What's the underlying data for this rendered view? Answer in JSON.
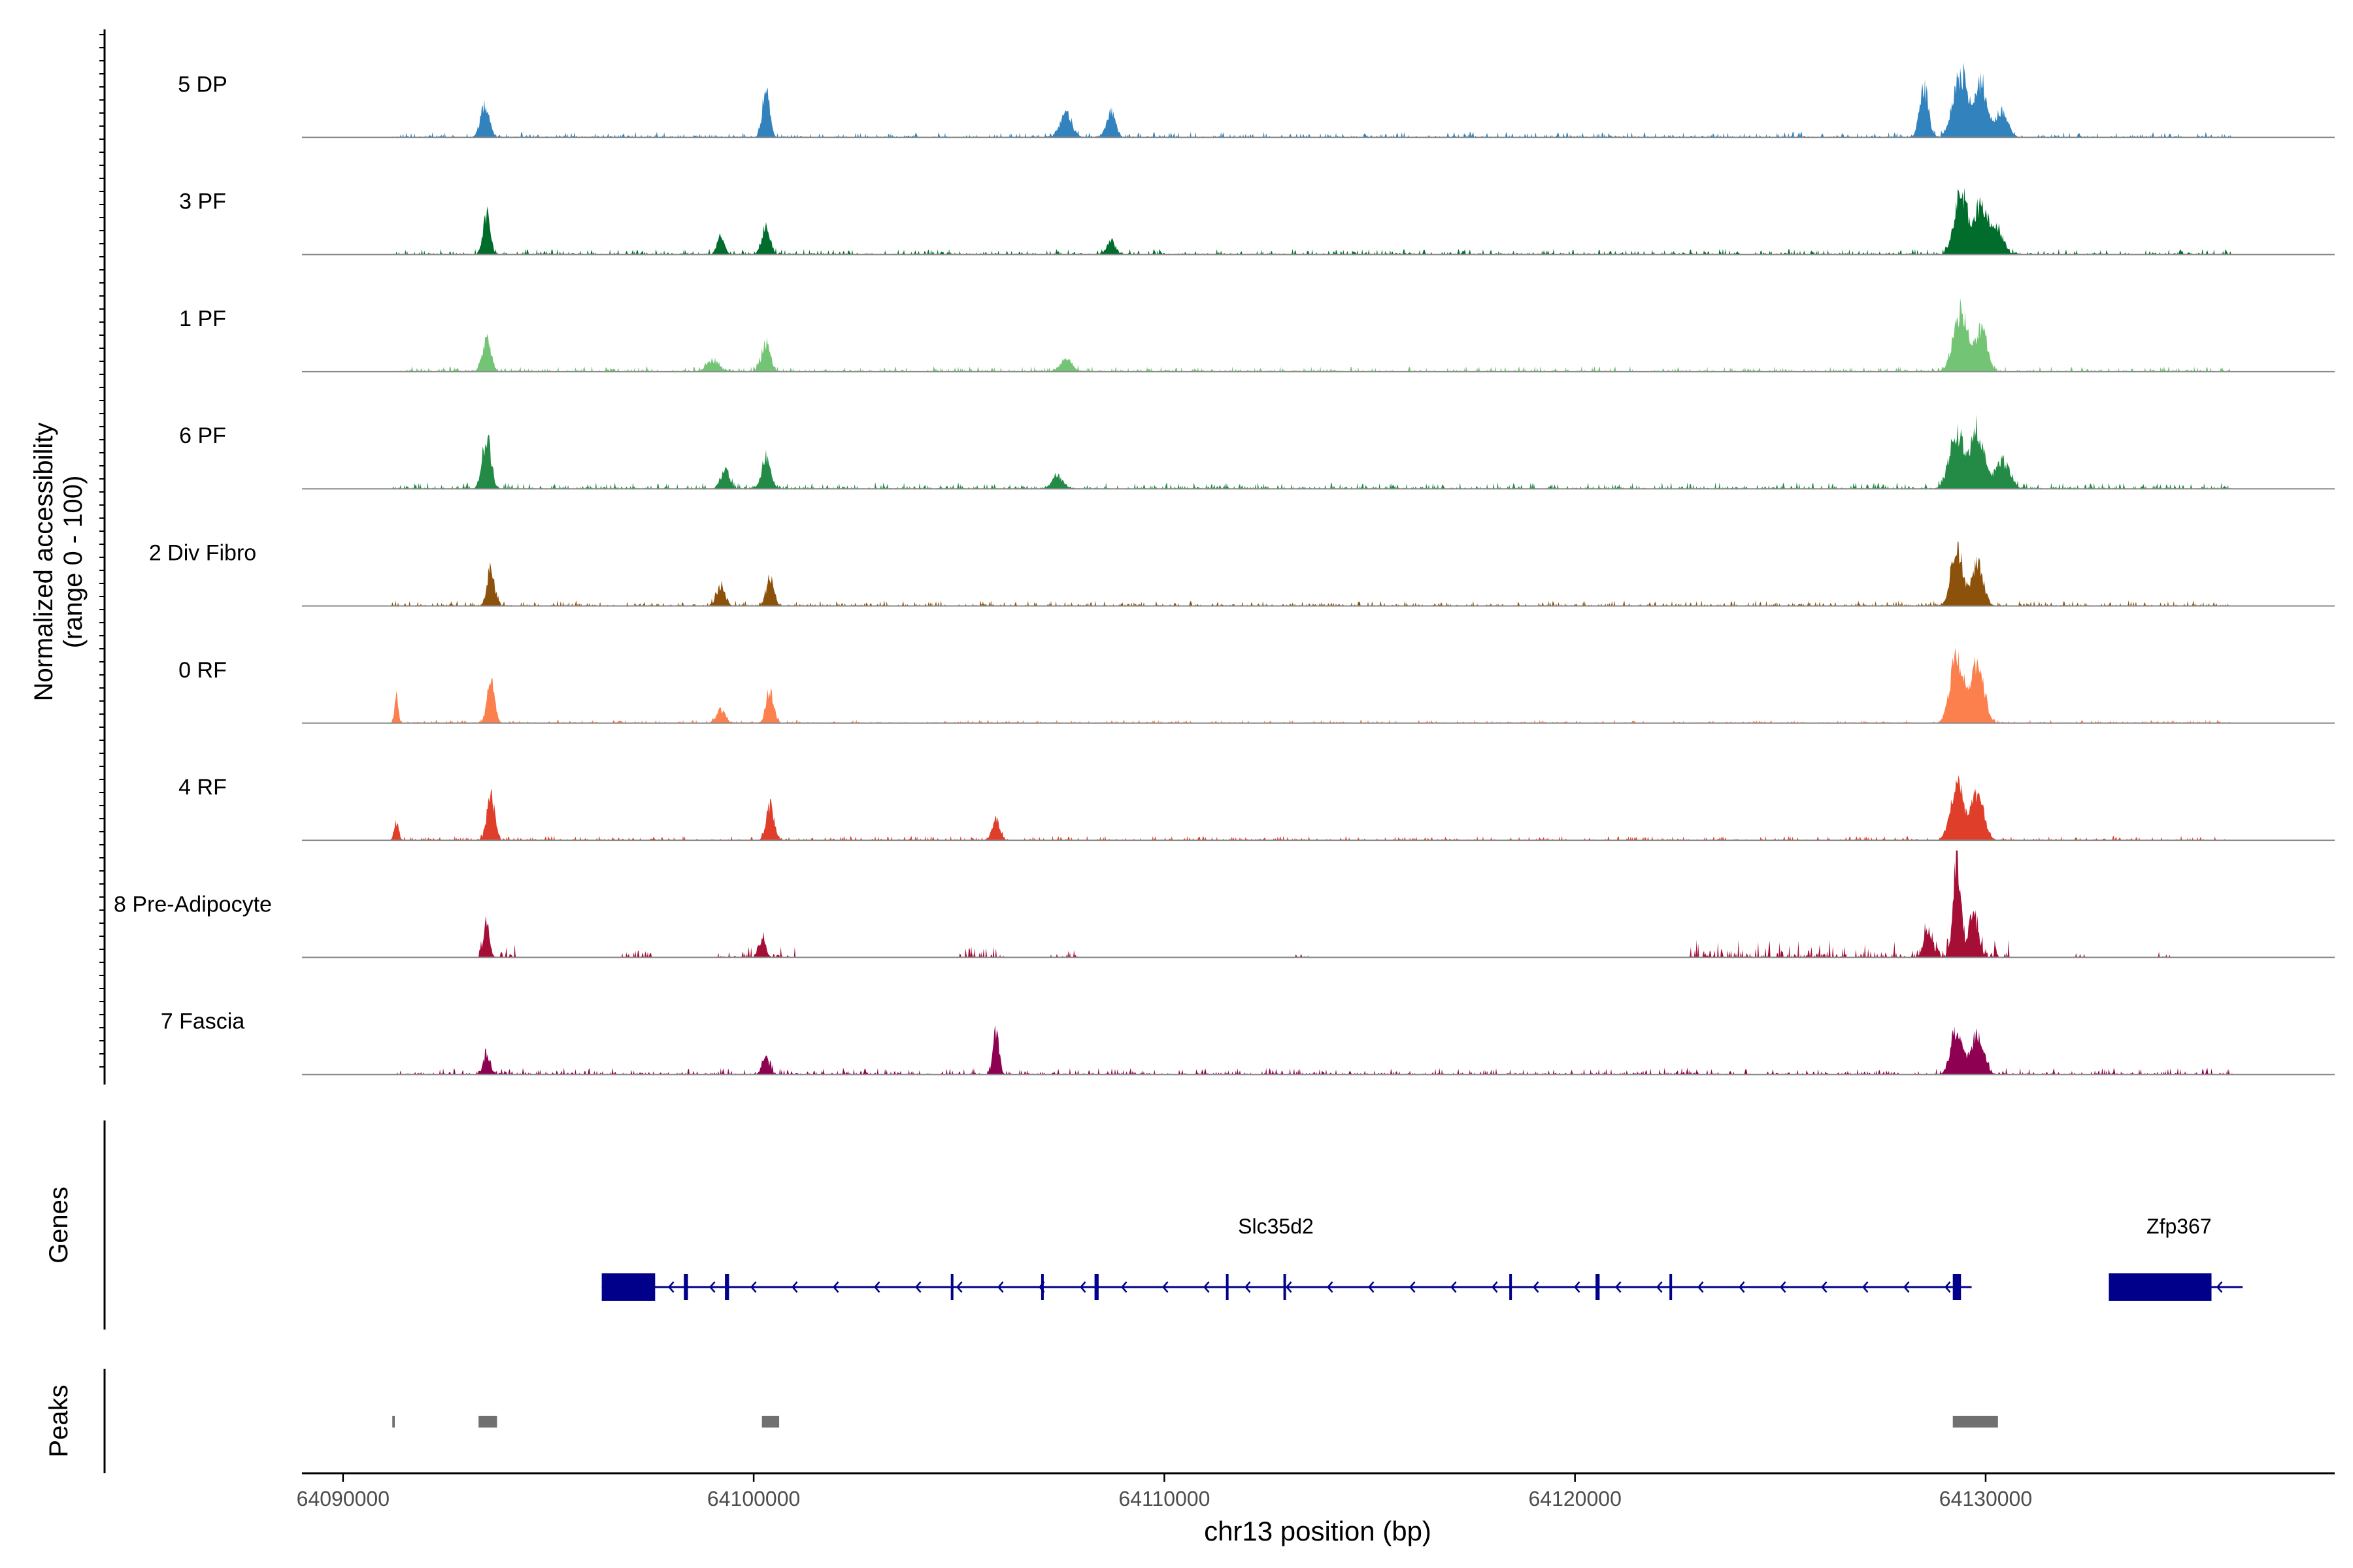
{
  "chart_data": {
    "type": "area",
    "title": "",
    "xlabel": "chr13 position (bp)",
    "ylabel_line1": "Normalized accessibility",
    "ylabel_line2": "(range 0 - 100)",
    "xlim": [
      64089000,
      64138500
    ],
    "x_ticks": [
      64090000,
      64100000,
      64110000,
      64120000,
      64130000
    ],
    "x_tick_labels": [
      "64090000",
      "64100000",
      "64110000",
      "64120000",
      "64130000"
    ],
    "track_labels": {
      "genes": "Genes",
      "peaks": "Peaks"
    },
    "coverage_range": [
      0,
      30
    ],
    "tracks": [
      {
        "name": "5 DP",
        "color": "#3182bd",
        "peaks": [
          [
            64093450,
            14,
            150
          ],
          [
            64100300,
            22,
            120
          ],
          [
            64107600,
            10,
            200
          ],
          [
            64108700,
            11,
            150
          ],
          [
            64128500,
            22,
            150
          ],
          [
            64129400,
            28,
            250
          ],
          [
            64129900,
            24,
            200
          ],
          [
            64130400,
            12,
            200
          ]
        ],
        "noise": [
          [
            64091200,
            64136000,
            2.5,
            1
          ]
        ]
      },
      {
        "name": "3 PF",
        "color": "#006d2c",
        "peaks": [
          [
            64093500,
            18,
            120
          ],
          [
            64099200,
            8,
            120
          ],
          [
            64100300,
            12,
            140
          ],
          [
            64108700,
            6,
            150
          ],
          [
            64129400,
            27,
            220
          ],
          [
            64129900,
            22,
            220
          ],
          [
            64130300,
            10,
            200
          ]
        ],
        "noise": [
          [
            64091200,
            64136000,
            2.5,
            2
          ]
        ]
      },
      {
        "name": "1 PF",
        "color": "#74c476",
        "peaks": [
          [
            64093500,
            14,
            150
          ],
          [
            64099000,
            5,
            200
          ],
          [
            64100300,
            13,
            150
          ],
          [
            64107600,
            5,
            220
          ],
          [
            64129400,
            26,
            250
          ],
          [
            64129900,
            18,
            200
          ]
        ],
        "noise": [
          [
            64091200,
            64136000,
            2.5,
            3
          ]
        ]
      },
      {
        "name": "6 PF",
        "color": "#238b45",
        "peaks": [
          [
            64093500,
            22,
            150
          ],
          [
            64099300,
            8,
            150
          ],
          [
            64100300,
            14,
            150
          ],
          [
            64107400,
            5,
            200
          ],
          [
            64129300,
            25,
            250
          ],
          [
            64129800,
            26,
            220
          ],
          [
            64130400,
            12,
            250
          ]
        ],
        "noise": [
          [
            64091200,
            64136000,
            3,
            4
          ]
        ]
      },
      {
        "name": "2 Div Fibro",
        "color": "#8c510a",
        "peaks": [
          [
            64093600,
            16,
            130
          ],
          [
            64099200,
            8,
            150
          ],
          [
            64100400,
            12,
            130
          ],
          [
            64129300,
            26,
            200
          ],
          [
            64129800,
            19,
            200
          ]
        ],
        "noise": [
          [
            64091200,
            64136000,
            2.5,
            5
          ]
        ]
      },
      {
        "name": "0 RF",
        "color": "#fc7f4e",
        "peaks": [
          [
            64091300,
            12,
            60
          ],
          [
            64093600,
            18,
            130
          ],
          [
            64099200,
            6,
            150
          ],
          [
            64100400,
            14,
            130
          ],
          [
            64129300,
            30,
            220
          ],
          [
            64129800,
            27,
            220
          ]
        ],
        "noise": [
          [
            64091200,
            64136000,
            1.5,
            6
          ]
        ]
      },
      {
        "name": "4 RF",
        "color": "#de3e2a",
        "peaks": [
          [
            64091300,
            8,
            80
          ],
          [
            64093600,
            20,
            130
          ],
          [
            64100400,
            16,
            130
          ],
          [
            64105900,
            9,
            130
          ],
          [
            64129300,
            25,
            220
          ],
          [
            64129800,
            20,
            220
          ]
        ],
        "noise": [
          [
            64091200,
            64136000,
            2,
            7
          ]
        ]
      },
      {
        "name": "8 Pre-Adipocyte",
        "color": "#a50f36",
        "peaks": [
          [
            64093500,
            15,
            100
          ],
          [
            64100200,
            8,
            120
          ],
          [
            64129300,
            45,
            130
          ],
          [
            64129700,
            20,
            150
          ],
          [
            64128600,
            10,
            150
          ]
        ],
        "noise": [
          [
            64093300,
            64094200,
            6,
            8
          ],
          [
            64096800,
            64097500,
            5,
            9
          ],
          [
            64099100,
            64101000,
            5,
            10
          ],
          [
            64105000,
            64106100,
            5,
            11
          ],
          [
            64107200,
            64107900,
            4,
            12
          ],
          [
            64113200,
            64113500,
            4,
            13
          ],
          [
            64122800,
            64130600,
            8,
            14
          ],
          [
            64132200,
            64132400,
            5,
            15
          ],
          [
            64134100,
            64134600,
            5,
            16
          ]
        ]
      },
      {
        "name": "7 Fascia",
        "color": "#8e0152",
        "peaks": [
          [
            64093500,
            9,
            120
          ],
          [
            64100300,
            7,
            130
          ],
          [
            64105900,
            19,
            100
          ],
          [
            64129300,
            21,
            200
          ],
          [
            64129800,
            16,
            220
          ]
        ],
        "noise": [
          [
            64091200,
            64136000,
            3,
            17
          ]
        ]
      }
    ],
    "genes": [
      {
        "name": "Slc35d2",
        "strand": "-",
        "color": "#00008b",
        "start": 64096300,
        "end": 64129500,
        "exons": [
          [
            64096300,
            64097600
          ],
          [
            64098300,
            64098400
          ],
          [
            64099300,
            64099400
          ],
          [
            64104800,
            64104850
          ],
          [
            64107000,
            64107060
          ],
          [
            64108300,
            64108400
          ],
          [
            64111500,
            64111560
          ],
          [
            64112900,
            64112960
          ],
          [
            64118400,
            64118460
          ],
          [
            64120500,
            64120600
          ],
          [
            64122300,
            64122340
          ],
          [
            64129200,
            64129400
          ]
        ]
      },
      {
        "name": "Zfp367",
        "strand": "-",
        "color": "#00008b",
        "start": 64133000,
        "end": 64136100,
        "exons": [
          [
            64133000,
            64135500
          ]
        ]
      }
    ],
    "peaks": [
      [
        64091200,
        64091260
      ],
      [
        64093300,
        64093750
      ],
      [
        64100200,
        64100620
      ],
      [
        64129200,
        64130300
      ]
    ],
    "peak_color": "#707070"
  }
}
